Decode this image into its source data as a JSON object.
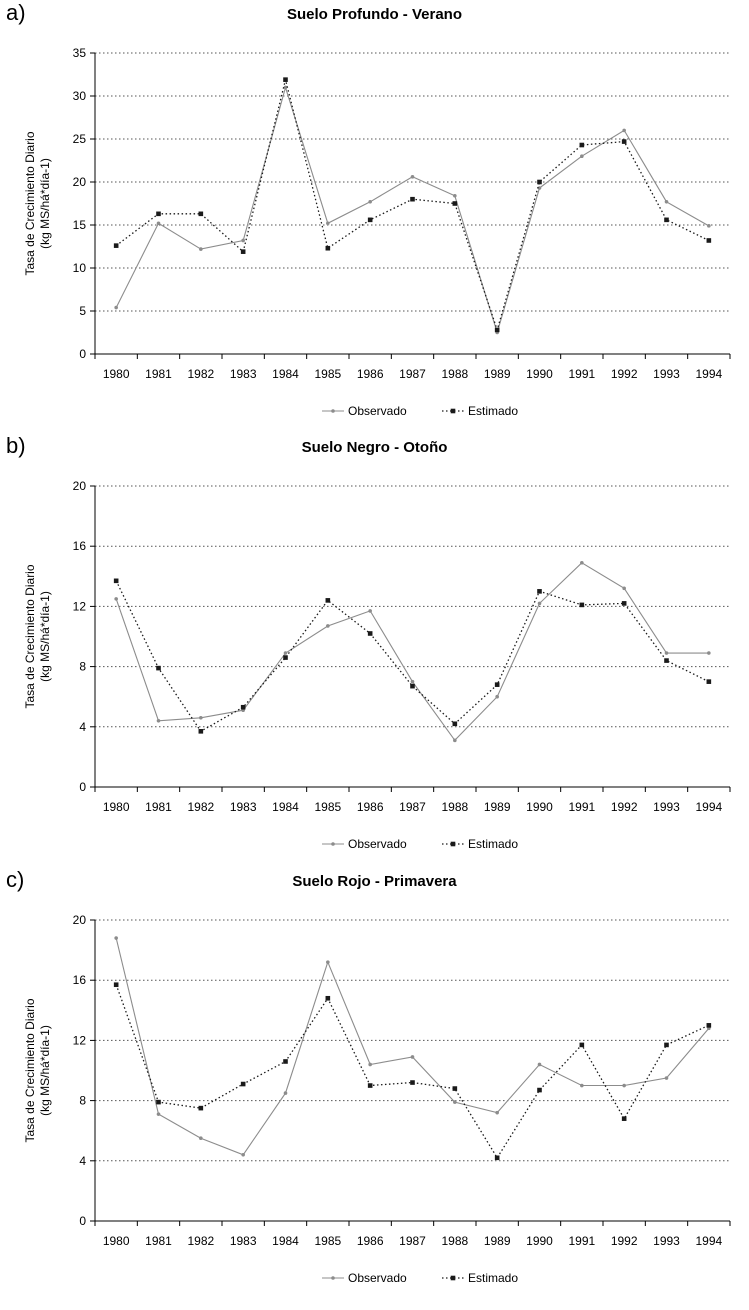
{
  "chart_data": [
    {
      "type": "line",
      "panel_label": "a)",
      "title": "Suelo Profundo - Verano",
      "ylabel": "Tasa de Crecimiento Diario",
      "ylabel_unit": "(kg MS/há*día-1)",
      "xlabel": "",
      "ylim": [
        0,
        35
      ],
      "yticks": [
        0,
        5,
        10,
        15,
        20,
        25,
        30,
        35
      ],
      "grid": true,
      "legend_position": "bottom",
      "categories": [
        "1980",
        "1981",
        "1982",
        "1983",
        "1984",
        "1985",
        "1986",
        "1987",
        "1988",
        "1989",
        "1990",
        "1991",
        "1992",
        "1993",
        "1994"
      ],
      "series": [
        {
          "name": "Observado",
          "style": "solid",
          "color": "#8c8c8c",
          "values": [
            5.4,
            15.2,
            12.2,
            13.2,
            31.0,
            15.2,
            17.7,
            20.6,
            18.4,
            2.5,
            19.3,
            23.0,
            26.0,
            17.7,
            14.9
          ]
        },
        {
          "name": "Estimado",
          "style": "dotted",
          "color": "#1a1a1a",
          "values": [
            12.6,
            16.3,
            16.3,
            11.9,
            31.9,
            12.3,
            15.6,
            18.0,
            17.5,
            2.8,
            20.0,
            24.3,
            24.7,
            15.6,
            13.2
          ]
        }
      ]
    },
    {
      "type": "line",
      "panel_label": "b)",
      "title": "Suelo Negro - Otoño",
      "ylabel": "Tasa de Crecimiento Diario",
      "ylabel_unit": "(kg MS/há*día-1)",
      "xlabel": "",
      "ylim": [
        0,
        20
      ],
      "yticks": [
        0,
        4,
        8,
        12,
        16,
        20
      ],
      "grid": true,
      "legend_position": "bottom",
      "categories": [
        "1980",
        "1981",
        "1982",
        "1983",
        "1984",
        "1985",
        "1986",
        "1987",
        "1988",
        "1989",
        "1990",
        "1991",
        "1992",
        "1993",
        "1994"
      ],
      "series": [
        {
          "name": "Observado",
          "style": "solid",
          "color": "#8c8c8c",
          "values": [
            12.5,
            4.4,
            4.6,
            5.1,
            8.9,
            10.7,
            11.7,
            7.0,
            3.1,
            6.0,
            12.2,
            14.9,
            13.2,
            8.9,
            8.9
          ]
        },
        {
          "name": "Estimado",
          "style": "dotted",
          "color": "#1a1a1a",
          "values": [
            13.7,
            7.9,
            3.7,
            5.3,
            8.6,
            12.4,
            10.2,
            6.7,
            4.2,
            6.8,
            13.0,
            12.1,
            12.2,
            8.4,
            7.0
          ]
        }
      ]
    },
    {
      "type": "line",
      "panel_label": "c)",
      "title": "Suelo Rojo - Primavera",
      "ylabel": "Tasa de Crecimiento Diario",
      "ylabel_unit": "(kg MS/há*día-1)",
      "xlabel": "",
      "ylim": [
        0,
        20
      ],
      "yticks": [
        0,
        4,
        8,
        12,
        16,
        20
      ],
      "grid": true,
      "legend_position": "bottom",
      "categories": [
        "1980",
        "1981",
        "1982",
        "1983",
        "1984",
        "1985",
        "1986",
        "1987",
        "1988",
        "1989",
        "1990",
        "1991",
        "1992",
        "1993",
        "1994"
      ],
      "series": [
        {
          "name": "Observado",
          "style": "solid",
          "color": "#8c8c8c",
          "values": [
            18.8,
            7.1,
            5.5,
            4.4,
            8.5,
            17.2,
            10.4,
            10.9,
            7.9,
            7.2,
            10.4,
            9.0,
            9.0,
            9.5,
            12.8
          ]
        },
        {
          "name": "Estimado",
          "style": "dotted",
          "color": "#1a1a1a",
          "values": [
            15.7,
            7.9,
            7.5,
            9.1,
            10.6,
            14.8,
            9.0,
            9.2,
            8.8,
            4.2,
            8.7,
            11.7,
            6.8,
            11.7,
            13.0
          ]
        }
      ]
    }
  ]
}
